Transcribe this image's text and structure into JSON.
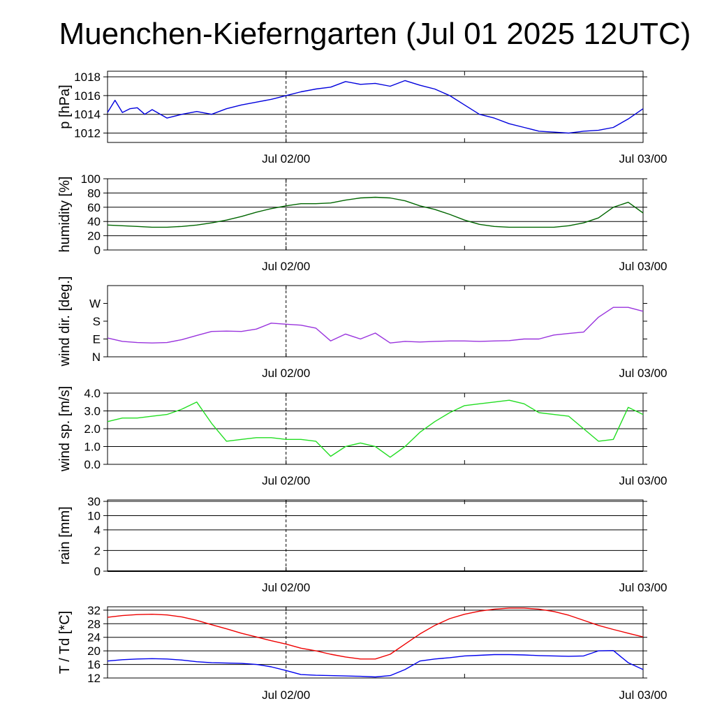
{
  "title": "Muenchen-Kieferngarten (Jul 01 2025 12UTC)",
  "chart_data": [
    {
      "type": "line",
      "ylabel": "p [hPa]",
      "x_ticks": [
        "Jul 02/00",
        "Jul 03/00"
      ],
      "ylim": [
        1011,
        1018.6
      ],
      "y_ticks": [
        1012,
        1014,
        1016,
        1018
      ],
      "y_tick_labels": [
        "1012",
        "1014",
        "1016",
        "1018"
      ],
      "grid": true,
      "color": "#0000dd",
      "series": [
        {
          "x": [
            0,
            0.5,
            1,
            1.5,
            2,
            2.5,
            3,
            4,
            5,
            6,
            7,
            8,
            9,
            10,
            11,
            12,
            13,
            14,
            15,
            16,
            17,
            18,
            19,
            20,
            21,
            22,
            23,
            24,
            25,
            26,
            27,
            28,
            29,
            30,
            31,
            32,
            33,
            34,
            35,
            36
          ],
          "y": [
            1014.2,
            1015.5,
            1014.2,
            1014.6,
            1014.7,
            1014.0,
            1014.5,
            1013.6,
            1014.0,
            1014.3,
            1014.0,
            1014.6,
            1015.0,
            1015.3,
            1015.6,
            1016.0,
            1016.4,
            1016.7,
            1016.9,
            1017.5,
            1017.2,
            1017.3,
            1017.0,
            1017.6,
            1017.1,
            1016.7,
            1016.0,
            1015.0,
            1014.0,
            1013.6,
            1013.0,
            1012.6,
            1012.2,
            1012.1,
            1012.0,
            1012.2,
            1012.3,
            1012.6,
            1013.5,
            1014.6
          ]
        }
      ]
    },
    {
      "type": "line",
      "ylabel": "humidity [%]",
      "x_ticks": [
        "Jul 02/00",
        "Jul 03/00"
      ],
      "ylim": [
        0,
        100
      ],
      "y_ticks": [
        0,
        20,
        40,
        60,
        80,
        100
      ],
      "y_tick_labels": [
        "0",
        "20",
        "40",
        "60",
        "80",
        "100"
      ],
      "grid": true,
      "color": "#006600",
      "series": [
        {
          "x": [
            0,
            1,
            2,
            3,
            4,
            5,
            6,
            7,
            8,
            9,
            10,
            11,
            12,
            13,
            14,
            15,
            16,
            17,
            18,
            19,
            20,
            21,
            22,
            23,
            24,
            25,
            26,
            27,
            28,
            29,
            30,
            31,
            32,
            33,
            34,
            35,
            36
          ],
          "y": [
            35,
            34,
            33,
            32,
            32,
            33,
            35,
            38,
            42,
            47,
            53,
            58,
            62,
            65,
            65,
            66,
            70,
            73,
            74,
            73,
            69,
            62,
            57,
            50,
            42,
            36,
            33,
            32,
            32,
            32,
            32,
            34,
            38,
            45,
            60,
            67,
            52
          ]
        }
      ]
    },
    {
      "type": "line",
      "ylabel": "wind dir. [deg.]",
      "x_ticks": [
        "Jul 02/00",
        "Jul 03/00"
      ],
      "ylim": [
        0,
        360
      ],
      "y_ticks": [
        0,
        90,
        180,
        270
      ],
      "y_tick_labels": [
        "N",
        "E",
        "S",
        "W"
      ],
      "grid": false,
      "color": "#9933dd",
      "series": [
        {
          "x": [
            0,
            1,
            2,
            3,
            4,
            5,
            6,
            7,
            8,
            9,
            10,
            11,
            12,
            13,
            14,
            15,
            16,
            17,
            18,
            19,
            20,
            21,
            22,
            23,
            24,
            25,
            26,
            27,
            28,
            29,
            30,
            31,
            32,
            33,
            34,
            35,
            36
          ],
          "y": [
            95,
            78,
            72,
            70,
            72,
            87,
            108,
            128,
            130,
            128,
            140,
            170,
            165,
            160,
            145,
            80,
            115,
            90,
            120,
            70,
            78,
            75,
            78,
            80,
            80,
            78,
            80,
            82,
            90,
            90,
            110,
            118,
            125,
            200,
            250,
            250,
            230
          ]
        }
      ]
    },
    {
      "type": "line",
      "ylabel": "wind sp. [m/s]",
      "x_ticks": [
        "Jul 02/00",
        "Jul 03/00"
      ],
      "ylim": [
        0,
        4
      ],
      "y_ticks": [
        0,
        1,
        2,
        3,
        4
      ],
      "y_tick_labels": [
        "0.0",
        "1.0",
        "2.0",
        "3.0",
        "4.0"
      ],
      "grid": true,
      "color": "#22dd22",
      "series": [
        {
          "x": [
            0,
            1,
            2,
            3,
            4,
            5,
            6,
            7,
            8,
            9,
            10,
            11,
            12,
            13,
            14,
            15,
            16,
            17,
            18,
            19,
            20,
            21,
            22,
            23,
            24,
            25,
            26,
            27,
            28,
            29,
            30,
            31,
            32,
            33,
            34,
            35,
            36
          ],
          "y": [
            2.4,
            2.6,
            2.6,
            2.7,
            2.8,
            3.1,
            3.5,
            2.3,
            1.3,
            1.4,
            1.5,
            1.5,
            1.4,
            1.4,
            1.3,
            0.45,
            1.0,
            1.2,
            1.0,
            0.4,
            1.0,
            1.8,
            2.4,
            2.9,
            3.3,
            3.4,
            3.5,
            3.6,
            3.4,
            2.9,
            2.8,
            2.7,
            2.0,
            1.3,
            1.4,
            3.2,
            2.8
          ]
        }
      ]
    },
    {
      "type": "line",
      "ylabel": "rain [mm]",
      "x_ticks": [
        "Jul 02/00",
        "Jul 03/00"
      ],
      "ylim": [
        0,
        30
      ],
      "y_ticks": [
        0,
        2,
        4,
        10,
        30
      ],
      "y_tick_labels": [
        "0",
        "2",
        "4",
        "10",
        "30"
      ],
      "y_tick_positions_frac": [
        0,
        0.29,
        0.58,
        0.78,
        0.98
      ],
      "grid": true,
      "color": "#000000",
      "series": [
        {
          "x": [
            0,
            36
          ],
          "y": [
            0,
            0
          ]
        }
      ]
    },
    {
      "type": "line",
      "ylabel": "T / Td [*C]",
      "x_ticks": [
        "Jul 02/00",
        "Jul 03/00"
      ],
      "ylim": [
        12,
        33
      ],
      "y_ticks": [
        12,
        16,
        20,
        24,
        28,
        32
      ],
      "y_tick_labels": [
        "12",
        "16",
        "20",
        "24",
        "28",
        "32"
      ],
      "grid": true,
      "series": [
        {
          "color": "#ee0000",
          "x": [
            0,
            1,
            2,
            3,
            4,
            5,
            6,
            7,
            8,
            9,
            10,
            11,
            12,
            13,
            14,
            15,
            16,
            17,
            18,
            19,
            20,
            21,
            22,
            23,
            24,
            25,
            26,
            27,
            28,
            29,
            30,
            31,
            32,
            33,
            34,
            35,
            36
          ],
          "y": [
            29.9,
            30.4,
            30.7,
            30.8,
            30.6,
            30.0,
            29.0,
            27.7,
            26.5,
            25.2,
            24.1,
            23.0,
            22.0,
            20.8,
            20.0,
            19.0,
            18.2,
            17.6,
            17.6,
            19.0,
            22.0,
            25.0,
            27.5,
            29.5,
            30.8,
            31.7,
            32.3,
            32.6,
            32.6,
            32.3,
            31.6,
            30.5,
            29.0,
            27.5,
            26.3,
            25.2,
            24.1
          ]
        },
        {
          "color": "#0000ee",
          "x": [
            0,
            1,
            2,
            3,
            4,
            5,
            6,
            7,
            8,
            9,
            10,
            11,
            12,
            13,
            14,
            15,
            16,
            17,
            18,
            19,
            20,
            21,
            22,
            23,
            24,
            25,
            26,
            27,
            28,
            29,
            30,
            31,
            32,
            33,
            34,
            35,
            36
          ],
          "y": [
            17.0,
            17.4,
            17.6,
            17.7,
            17.6,
            17.3,
            16.8,
            16.5,
            16.4,
            16.3,
            16.0,
            15.3,
            14.2,
            13.0,
            12.8,
            12.7,
            12.6,
            12.5,
            12.3,
            12.7,
            14.5,
            17.0,
            17.6,
            18.0,
            18.5,
            18.7,
            18.9,
            18.9,
            18.8,
            18.6,
            18.5,
            18.4,
            18.5,
            20.0,
            20.1,
            16.5,
            14.5
          ]
        }
      ]
    }
  ]
}
